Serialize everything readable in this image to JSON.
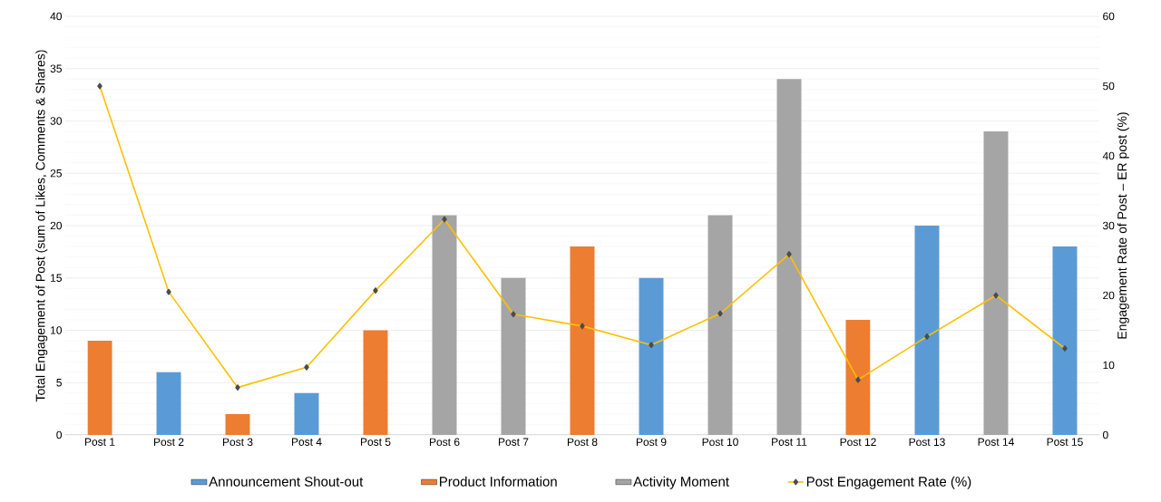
{
  "chart_data": {
    "type": "bar",
    "xlabel": null,
    "ylabel": "Total Engagement of Post (sum of Likes, Comments & Shares)",
    "y2label": "Engagement Rate of Post – ER post (%)",
    "categories": [
      "Post 1",
      "Post 2",
      "Post 3",
      "Post 4",
      "Post 5",
      "Post 6",
      "Post 7",
      "Post 8",
      "Post 9",
      "Post 10",
      "Post 11",
      "Post 12",
      "Post 13",
      "Post 14",
      "Post 15"
    ],
    "series": [
      {
        "name": "Announcement Shout-out",
        "color": "#5b9bd5",
        "values": [
          null,
          6,
          null,
          4,
          null,
          null,
          null,
          null,
          15,
          null,
          null,
          null,
          20,
          null,
          18
        ]
      },
      {
        "name": "Product Information",
        "color": "#ed7d31",
        "values": [
          9,
          null,
          2,
          null,
          10,
          null,
          null,
          18,
          null,
          null,
          null,
          11,
          null,
          null,
          null
        ]
      },
      {
        "name": "Activity Moment",
        "color": "#a5a5a5",
        "values": [
          null,
          null,
          null,
          null,
          null,
          21,
          15,
          null,
          null,
          21,
          34,
          null,
          null,
          29,
          null
        ]
      },
      {
        "name": "Post Engagement Rate (%)",
        "type": "line",
        "axis": "y2",
        "color": "#ffc000",
        "values": [
          50,
          20.5,
          6.8,
          9.7,
          20.7,
          30.9,
          17.3,
          15.6,
          12.9,
          17.4,
          25.9,
          7.9,
          14.1,
          20,
          12.4
        ]
      }
    ],
    "ylim": [
      0,
      40
    ],
    "yticks": [
      0,
      5,
      10,
      15,
      20,
      25,
      30,
      35,
      40
    ],
    "y2lim": [
      0,
      60
    ],
    "y2ticks": [
      0,
      10,
      20,
      30,
      40,
      50,
      60
    ],
    "grid": "y",
    "legend": "bottom",
    "marker": "diamond",
    "line_style": "solid"
  }
}
